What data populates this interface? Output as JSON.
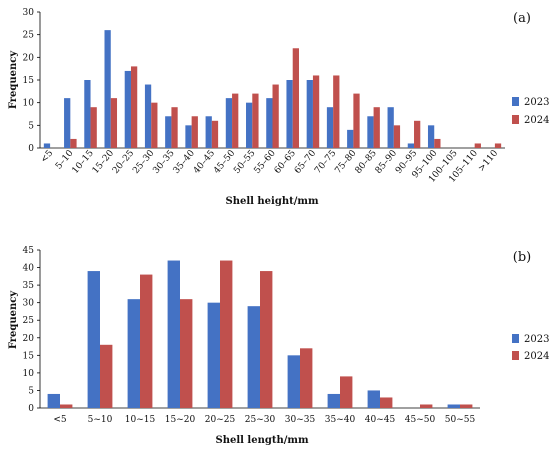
{
  "colors": {
    "2023": "#4472C4",
    "2024": "#C0504D"
  },
  "chart_data": [
    {
      "type": "bar",
      "panel_label": "(a)",
      "xlabel": "Shell height/mm",
      "ylabel": "Frequency",
      "ylim": [
        0,
        30
      ],
      "yticks": [
        0,
        5,
        10,
        15,
        20,
        25,
        30
      ],
      "grid": false,
      "legend": "right",
      "categories": [
        "<5",
        "5–10",
        "10–15",
        "15–20",
        "20–25",
        "25–30",
        "30–35",
        "35–40",
        "40–45",
        "45–50",
        "50–55",
        "55–60",
        "60–65",
        "65–70",
        "70–75",
        "75–80",
        "80–85",
        "85–90",
        "90–95",
        "95–100",
        "100–105",
        "105–110",
        ">110"
      ],
      "series": [
        {
          "name": "2023",
          "values": [
            1,
            11,
            15,
            26,
            17,
            14,
            7,
            5,
            7,
            11,
            10,
            11,
            15,
            15,
            9,
            4,
            7,
            9,
            1,
            5,
            0,
            0,
            0
          ]
        },
        {
          "name": "2024",
          "values": [
            0,
            2,
            9,
            11,
            18,
            10,
            9,
            7,
            6,
            12,
            12,
            14,
            22,
            16,
            16,
            12,
            9,
            5,
            6,
            2,
            0,
            1,
            1
          ]
        }
      ]
    },
    {
      "type": "bar",
      "panel_label": "(b)",
      "xlabel": "Shell length/mm",
      "ylabel": "Frequency",
      "ylim": [
        0,
        45
      ],
      "yticks": [
        0,
        5,
        10,
        15,
        20,
        25,
        30,
        35,
        40,
        45
      ],
      "grid": false,
      "legend": "right",
      "categories": [
        "<5",
        "5~10",
        "10~15",
        "15~20",
        "20~25",
        "25~30",
        "30~35",
        "35~40",
        "40~45",
        "45~50",
        "50~55"
      ],
      "series": [
        {
          "name": "2023",
          "values": [
            4,
            39,
            31,
            42,
            30,
            29,
            15,
            4,
            5,
            0,
            1
          ]
        },
        {
          "name": "2024",
          "values": [
            1,
            18,
            38,
            31,
            42,
            39,
            17,
            9,
            3,
            1,
            1
          ]
        }
      ]
    }
  ]
}
